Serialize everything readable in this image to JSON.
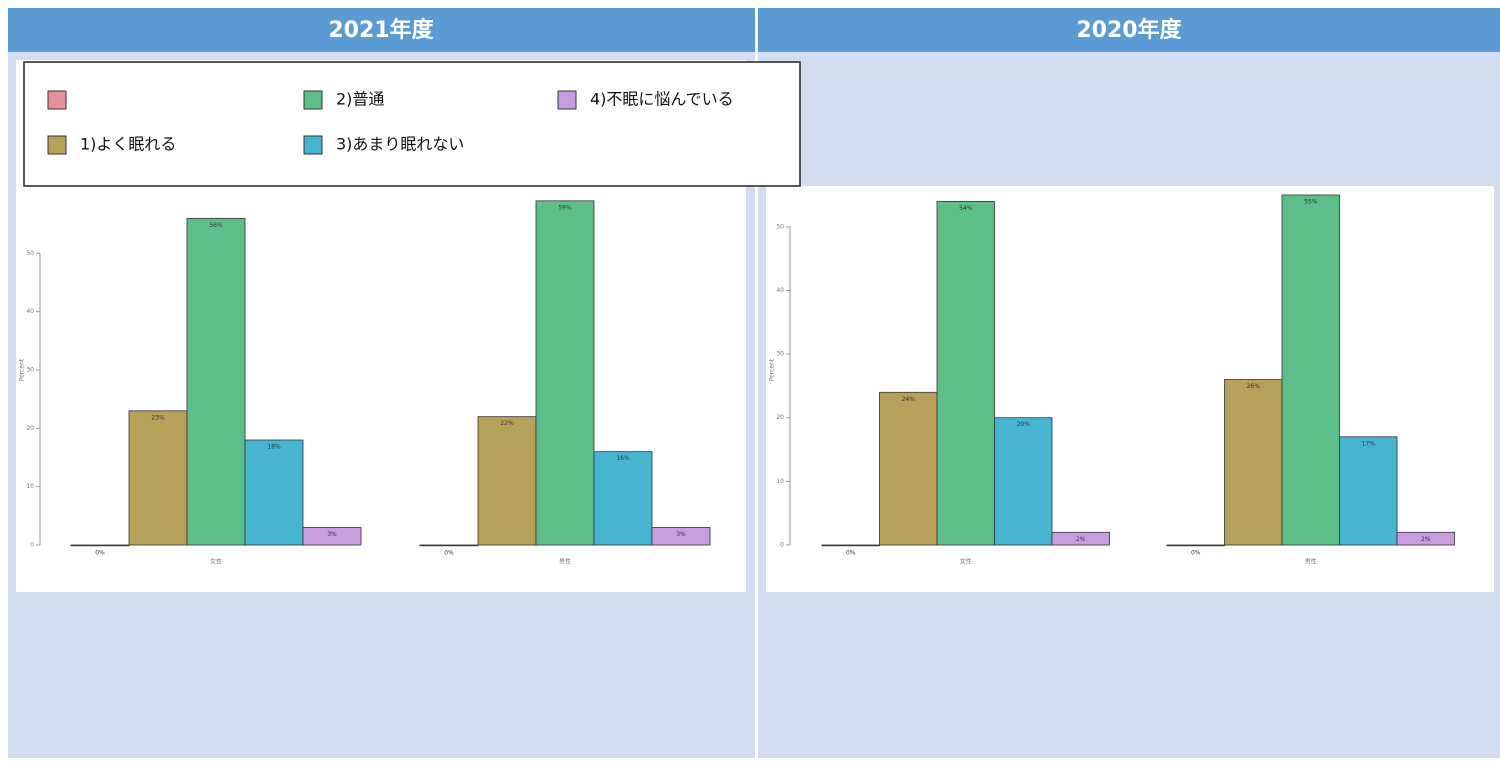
{
  "chart_data": [
    {
      "type": "bar",
      "title": "2021年度",
      "ylabel": "Percent",
      "categories": [
        "女性",
        "男性"
      ],
      "series": [
        {
          "name": null,
          "color": "#e8909c",
          "values": [
            0,
            0
          ],
          "value_labels": [
            "0%",
            "0%"
          ]
        },
        {
          "name": "1)よく眠れる",
          "color": "#b8a05a",
          "values": [
            23,
            22
          ],
          "value_labels": [
            "23%",
            "22%"
          ]
        },
        {
          "name": "2)普通",
          "color": "#5cbf8a",
          "values": [
            56,
            59
          ],
          "value_labels": [
            "56%",
            "59%"
          ]
        },
        {
          "name": "3)あまり眠れない",
          "color": "#45b5d0",
          "values": [
            18,
            16
          ],
          "value_labels": [
            "18%",
            "16%"
          ]
        },
        {
          "name": "4)不眠に悩んでいる",
          "color": "#c99ce0",
          "values": [
            3,
            3
          ],
          "value_labels": [
            "3%",
            "3%"
          ]
        }
      ],
      "ylim": [
        0,
        60
      ],
      "yticks": [
        0,
        10,
        20,
        30,
        40,
        50
      ]
    },
    {
      "type": "bar",
      "title": "2020年度",
      "ylabel": "Percent",
      "categories": [
        "女性",
        "男性"
      ],
      "series": [
        {
          "name": null,
          "color": "#e8909c",
          "values": [
            0,
            0
          ],
          "value_labels": [
            "0%",
            "0%"
          ]
        },
        {
          "name": "1)よく眠れる",
          "color": "#b8a05a",
          "values": [
            24,
            26
          ],
          "value_labels": [
            "24%",
            "26%"
          ]
        },
        {
          "name": "2)普通",
          "color": "#5cbf8a",
          "values": [
            54,
            55
          ],
          "value_labels": [
            "54%",
            "55%"
          ]
        },
        {
          "name": "3)あまり眠れない",
          "color": "#45b5d0",
          "values": [
            20,
            17
          ],
          "value_labels": [
            "20%",
            "17%"
          ]
        },
        {
          "name": "4)不眠に悩んでいる",
          "color": "#c99ce0",
          "values": [
            2,
            2
          ],
          "value_labels": [
            "2%",
            "2%"
          ]
        }
      ],
      "ylim": [
        0,
        55
      ],
      "yticks": [
        0,
        10,
        20,
        30,
        40,
        50
      ]
    }
  ]
}
